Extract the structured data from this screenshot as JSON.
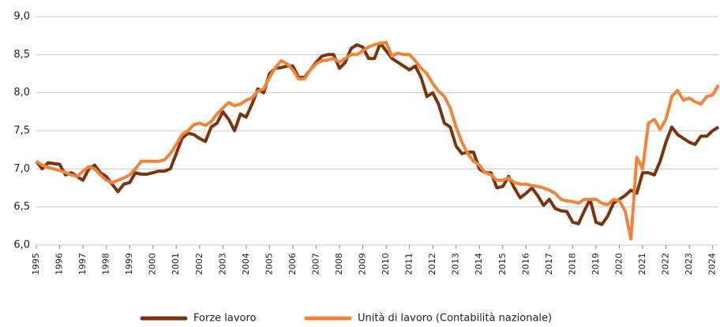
{
  "chart_data": {
    "type": "line",
    "x": [
      1995,
      1995.25,
      1995.5,
      1995.75,
      1996,
      1996.25,
      1996.5,
      1996.75,
      1997,
      1997.25,
      1997.5,
      1997.75,
      1998,
      1998.25,
      1998.5,
      1998.75,
      1999,
      1999.25,
      1999.5,
      1999.75,
      2000,
      2000.25,
      2000.5,
      2000.75,
      2001,
      2001.25,
      2001.5,
      2001.75,
      2002,
      2002.25,
      2002.5,
      2002.75,
      2003,
      2003.25,
      2003.5,
      2003.75,
      2004,
      2004.25,
      2004.5,
      2004.75,
      2005,
      2005.25,
      2005.5,
      2005.75,
      2006,
      2006.25,
      2006.5,
      2006.75,
      2007,
      2007.25,
      2007.5,
      2007.75,
      2008,
      2008.25,
      2008.5,
      2008.75,
      2009,
      2009.25,
      2009.5,
      2009.75,
      2010,
      2010.25,
      2010.5,
      2010.75,
      2011,
      2011.25,
      2011.5,
      2011.75,
      2012,
      2012.25,
      2012.5,
      2012.75,
      2013,
      2013.25,
      2013.5,
      2013.75,
      2014,
      2014.25,
      2014.5,
      2014.75,
      2015,
      2015.25,
      2015.5,
      2015.75,
      2016,
      2016.25,
      2016.5,
      2016.75,
      2017,
      2017.25,
      2017.5,
      2017.75,
      2018,
      2018.25,
      2018.5,
      2018.75,
      2019,
      2019.25,
      2019.5,
      2019.75,
      2020,
      2020.25,
      2020.5,
      2020.75,
      2021,
      2021.25,
      2021.5,
      2021.75,
      2022,
      2022.25,
      2022.5,
      2022.75,
      2023,
      2023.25,
      2023.5,
      2023.75,
      2024,
      2024.25
    ],
    "series": [
      {
        "name": "Forze lavoro",
        "color": "#7a3510",
        "values": [
          7.1,
          7.0,
          7.08,
          7.07,
          7.06,
          6.92,
          6.95,
          6.9,
          6.85,
          7.0,
          7.05,
          6.95,
          6.9,
          6.8,
          6.7,
          6.8,
          6.82,
          6.95,
          6.93,
          6.93,
          6.95,
          6.97,
          6.97,
          7.0,
          7.2,
          7.4,
          7.47,
          7.45,
          7.4,
          7.36,
          7.55,
          7.6,
          7.75,
          7.65,
          7.5,
          7.72,
          7.68,
          7.85,
          8.05,
          8.0,
          8.25,
          8.32,
          8.33,
          8.35,
          8.35,
          8.2,
          8.2,
          8.3,
          8.4,
          8.48,
          8.5,
          8.5,
          8.32,
          8.4,
          8.58,
          8.63,
          8.6,
          8.45,
          8.45,
          8.65,
          8.55,
          8.45,
          8.4,
          8.35,
          8.3,
          8.35,
          8.2,
          7.95,
          8.0,
          7.85,
          7.6,
          7.55,
          7.3,
          7.2,
          7.22,
          7.22,
          7.0,
          6.95,
          6.95,
          6.75,
          6.77,
          6.9,
          6.75,
          6.62,
          6.68,
          6.75,
          6.65,
          6.52,
          6.6,
          6.48,
          6.45,
          6.44,
          6.3,
          6.28,
          6.45,
          6.6,
          6.3,
          6.27,
          6.38,
          6.55,
          6.6,
          6.65,
          6.72,
          6.68,
          6.95,
          6.95,
          6.92,
          7.1,
          7.35,
          7.55,
          7.45,
          7.4,
          7.35,
          7.32,
          7.43,
          7.43,
          7.5,
          7.55
        ]
      },
      {
        "name": "Unità di lavoro (Contabilità nazionale)",
        "color": "#f0843a",
        "values": [
          7.1,
          7.05,
          7.02,
          7.0,
          6.98,
          6.95,
          6.92,
          6.9,
          6.97,
          7.03,
          7.0,
          6.92,
          6.85,
          6.82,
          6.85,
          6.88,
          6.92,
          7.0,
          7.1,
          7.1,
          7.1,
          7.1,
          7.12,
          7.2,
          7.32,
          7.45,
          7.5,
          7.58,
          7.6,
          7.57,
          7.62,
          7.72,
          7.8,
          7.87,
          7.83,
          7.85,
          7.9,
          7.93,
          8.02,
          8.05,
          8.2,
          8.33,
          8.42,
          8.38,
          8.3,
          8.18,
          8.18,
          8.3,
          8.38,
          8.42,
          8.43,
          8.45,
          8.4,
          8.45,
          8.5,
          8.5,
          8.55,
          8.6,
          8.63,
          8.65,
          8.66,
          8.48,
          8.52,
          8.5,
          8.5,
          8.42,
          8.32,
          8.25,
          8.12,
          8.02,
          7.95,
          7.8,
          7.55,
          7.35,
          7.2,
          7.1,
          7.05,
          6.95,
          6.92,
          6.85,
          6.85,
          6.88,
          6.82,
          6.8,
          6.8,
          6.78,
          6.77,
          6.75,
          6.72,
          6.68,
          6.6,
          6.58,
          6.57,
          6.55,
          6.6,
          6.6,
          6.6,
          6.55,
          6.53,
          6.6,
          6.58,
          6.45,
          6.08,
          7.15,
          7.0,
          7.6,
          7.65,
          7.52,
          7.65,
          7.95,
          8.03,
          7.9,
          7.93,
          7.88,
          7.85,
          7.95,
          7.97,
          8.1
        ]
      }
    ],
    "xlim": [
      1995,
      2024.25
    ],
    "xticks": [
      1995,
      1996,
      1997,
      1998,
      1999,
      2000,
      2001,
      2002,
      2003,
      2004,
      2005,
      2006,
      2007,
      2008,
      2009,
      2010,
      2011,
      2012,
      2013,
      2014,
      2015,
      2016,
      2017,
      2018,
      2019,
      2020,
      2021,
      2022,
      2023,
      2024
    ],
    "ylim": [
      6.0,
      9.0
    ],
    "yticks": [
      {
        "value": 6.0,
        "label": "6,0"
      },
      {
        "value": 6.5,
        "label": "6,5"
      },
      {
        "value": 7.0,
        "label": "7,0"
      },
      {
        "value": 7.5,
        "label": "7,5"
      },
      {
        "value": 8.0,
        "label": "8,0"
      },
      {
        "value": 8.5,
        "label": "8,5"
      },
      {
        "value": 9.0,
        "label": "9,0"
      }
    ],
    "grid": true
  }
}
